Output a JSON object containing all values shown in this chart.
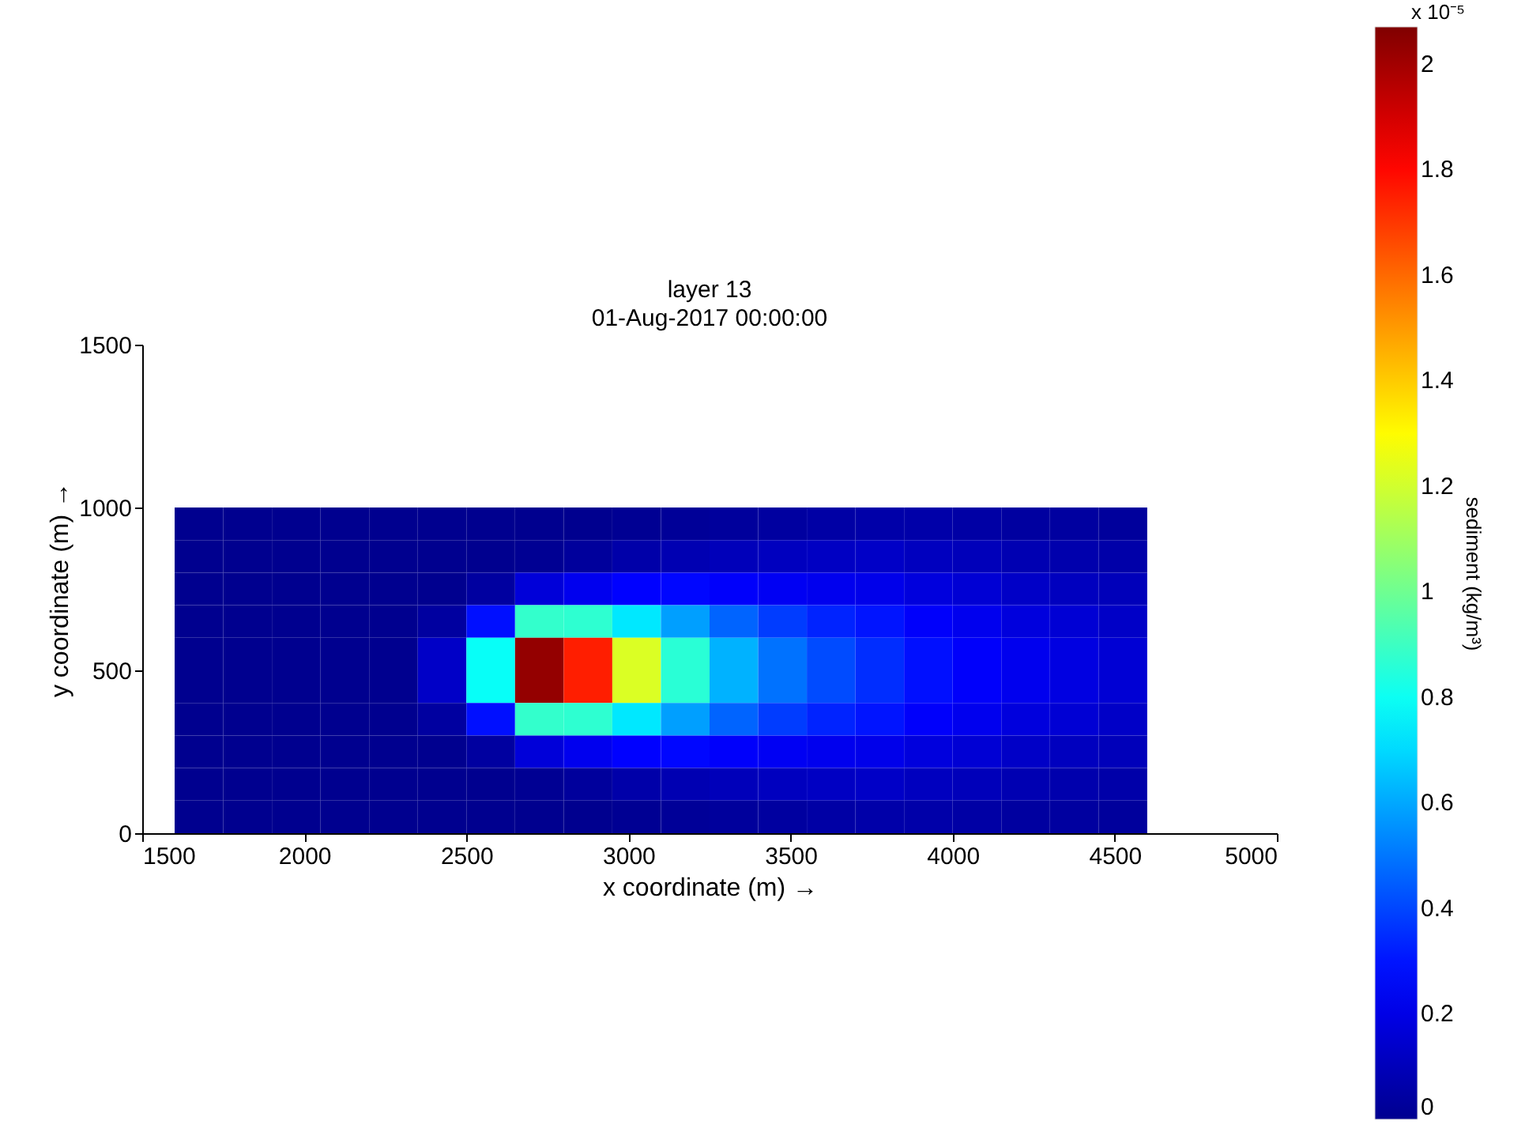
{
  "chart_data": {
    "type": "heatmap",
    "title": "layer 13",
    "subtitle": "01-Aug-2017 00:00:00",
    "xlabel": "x coordinate (m) →",
    "ylabel": "y coordinate (m) →",
    "clabel": "sediment (kg/m³)",
    "annotations": [
      "x 10⁻⁵"
    ],
    "x": [
      1675,
      1825,
      1975,
      2125,
      2275,
      2425,
      2575,
      2725,
      2875,
      3025,
      3175,
      3325,
      3475,
      3625,
      3775,
      3925,
      4075,
      4225,
      4375,
      4525
    ],
    "y": [
      950,
      850,
      750,
      650,
      550,
      450,
      350,
      250,
      150,
      50
    ],
    "cells": [
      [
        0,
        0,
        0,
        0,
        0,
        0,
        0,
        0,
        0,
        0.01,
        0.02,
        0.03,
        0.04,
        0.05,
        0.06,
        0.06,
        0.05,
        0.04,
        0.04,
        0.03
      ],
      [
        0,
        0,
        0,
        0,
        0,
        0,
        0,
        0.01,
        0.03,
        0.06,
        0.08,
        0.1,
        0.11,
        0.12,
        0.13,
        0.11,
        0.1,
        0.08,
        0.07,
        0.06
      ],
      [
        0,
        0,
        0,
        0,
        0,
        0,
        0.04,
        0.17,
        0.22,
        0.26,
        0.27,
        0.25,
        0.23,
        0.22,
        0.21,
        0.18,
        0.16,
        0.13,
        0.11,
        0.1
      ],
      [
        0,
        0,
        0,
        0,
        0,
        0.04,
        0.29,
        0.88,
        0.87,
        0.73,
        0.58,
        0.46,
        0.38,
        0.33,
        0.3,
        0.25,
        0.22,
        0.18,
        0.16,
        0.13
      ],
      [
        0,
        0,
        0,
        0,
        0,
        0.13,
        0.79,
        2.03,
        1.75,
        1.22,
        0.86,
        0.62,
        0.49,
        0.41,
        0.35,
        0.29,
        0.25,
        0.22,
        0.19,
        0.16
      ],
      [
        0,
        0,
        0,
        0,
        0,
        0.13,
        0.79,
        2.03,
        1.75,
        1.22,
        0.86,
        0.62,
        0.49,
        0.41,
        0.35,
        0.29,
        0.25,
        0.22,
        0.19,
        0.16
      ],
      [
        0,
        0,
        0,
        0,
        0,
        0.04,
        0.29,
        0.88,
        0.87,
        0.73,
        0.58,
        0.46,
        0.38,
        0.33,
        0.3,
        0.25,
        0.22,
        0.18,
        0.16,
        0.13
      ],
      [
        0,
        0,
        0,
        0,
        0,
        0,
        0.04,
        0.17,
        0.22,
        0.26,
        0.27,
        0.25,
        0.23,
        0.22,
        0.21,
        0.18,
        0.16,
        0.13,
        0.11,
        0.1
      ],
      [
        0,
        0,
        0,
        0,
        0,
        0,
        0,
        0.01,
        0.03,
        0.06,
        0.08,
        0.1,
        0.11,
        0.12,
        0.13,
        0.11,
        0.1,
        0.08,
        0.07,
        0.06
      ],
      [
        0,
        0,
        0,
        0,
        0,
        0,
        0,
        0,
        0,
        0.01,
        0.02,
        0.03,
        0.04,
        0.05,
        0.06,
        0.06,
        0.05,
        0.04,
        0.04,
        0.03
      ]
    ],
    "colors": [
      "#00008f",
      "#0000ff",
      "#0080ff",
      "#00ffff",
      "#80ff80",
      "#ffff00",
      "#ff8000",
      "#ff0000",
      "#800000"
    ],
    "clim": [
      0,
      2.07
    ],
    "cticks": [
      0,
      0.2,
      0.4,
      0.6,
      0.8,
      1,
      1.2,
      1.4,
      1.6,
      1.8,
      2
    ],
    "xlim": [
      1500,
      5000
    ],
    "xticks": [
      1500,
      2000,
      2500,
      3000,
      3500,
      4000,
      4500,
      5000
    ],
    "ylim": [
      0,
      1500
    ],
    "yticks": [
      0,
      500,
      1000,
      1500
    ],
    "grid": false
  }
}
